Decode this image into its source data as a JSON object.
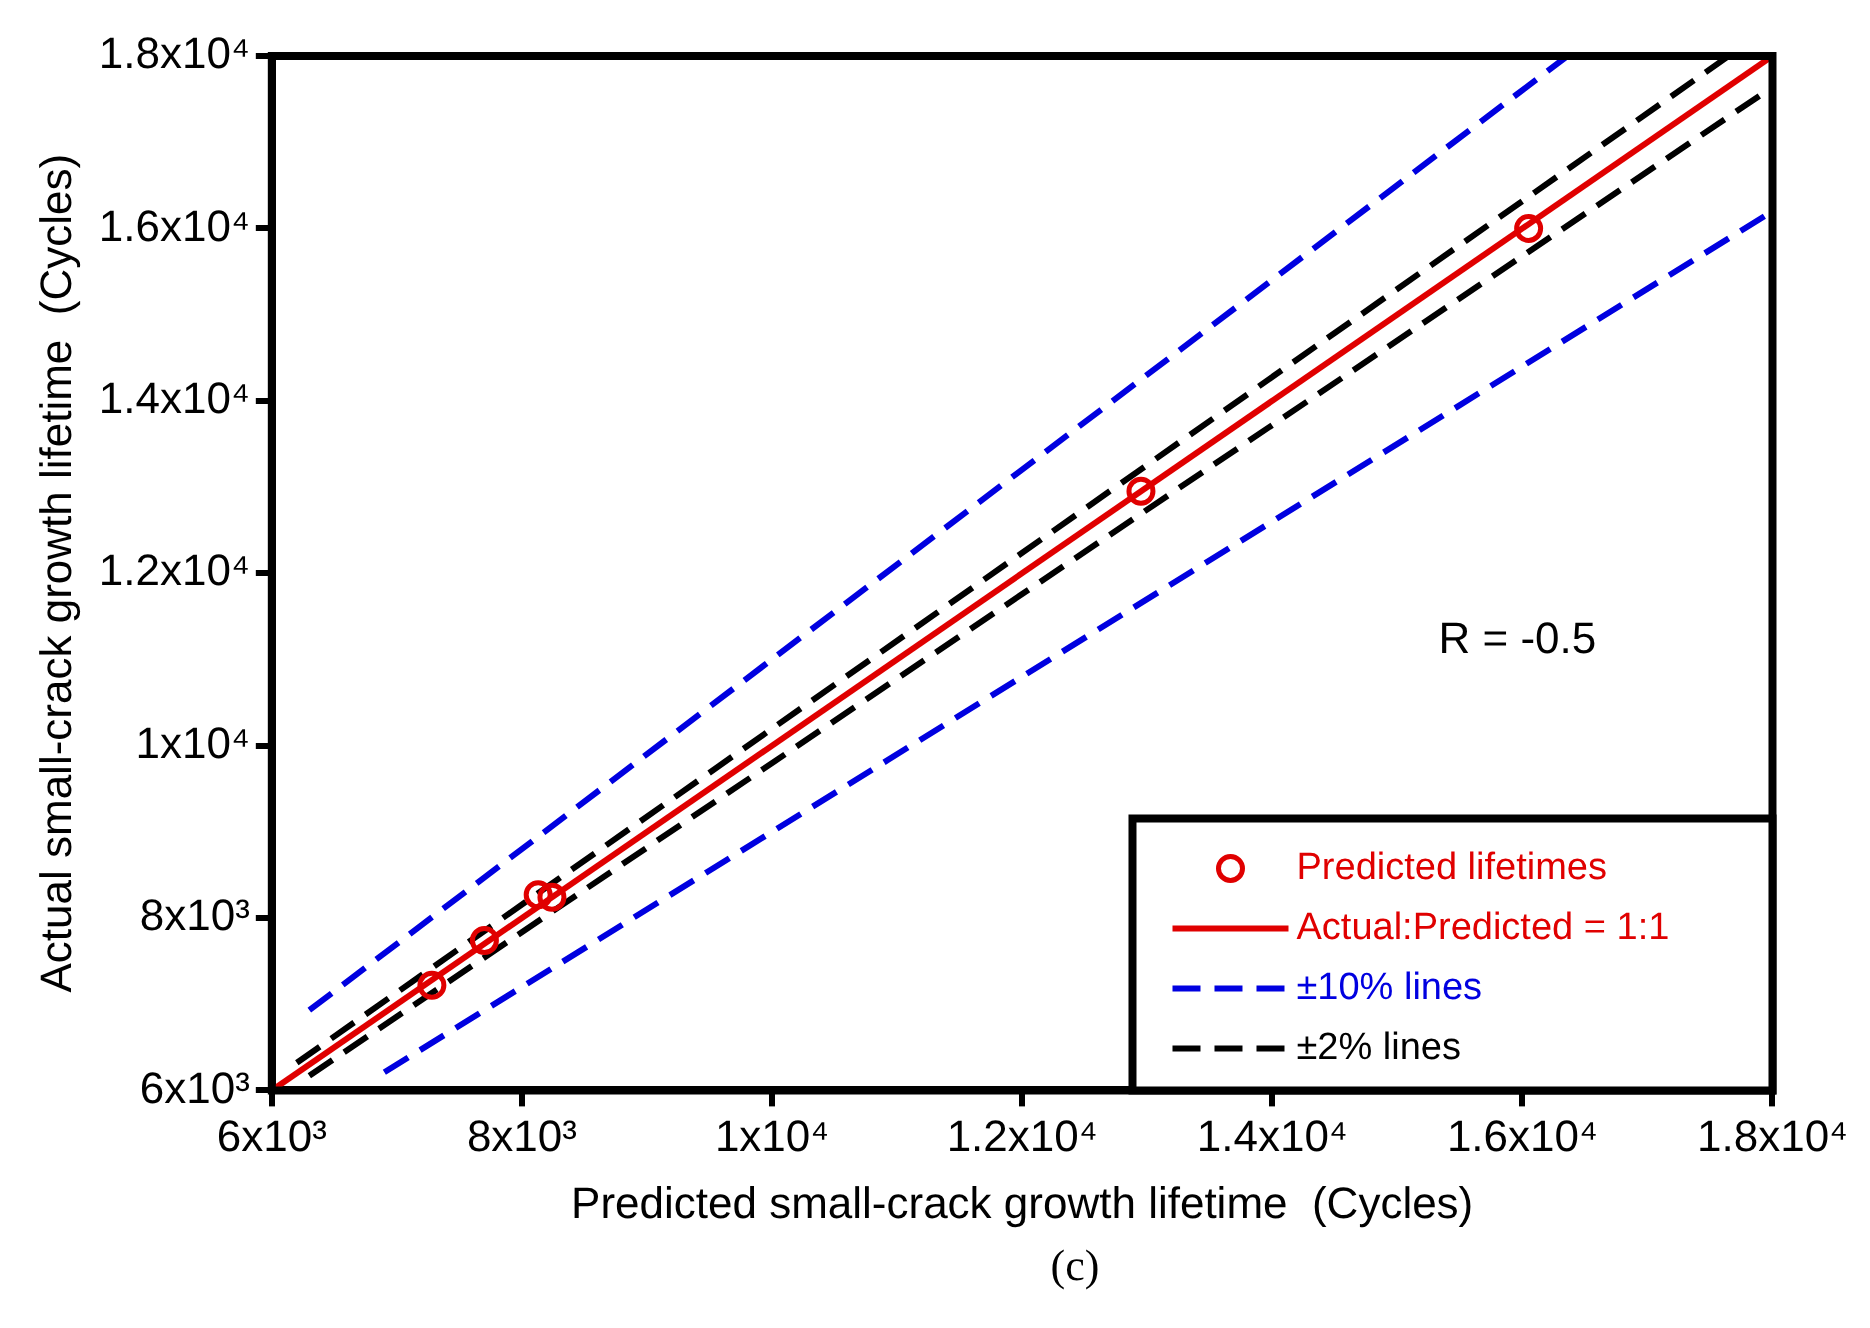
{
  "chart_data": {
    "type": "scatter",
    "xlabel": "Predicted small-crack growth lifetime  (Cycles)",
    "ylabel": "Actual small-crack growth lifetime  (Cycles)",
    "xlim": [
      6000,
      18000
    ],
    "ylim": [
      6000,
      18000
    ],
    "xticks": [
      {
        "value": 6000,
        "label": "6x10³"
      },
      {
        "value": 8000,
        "label": "8x10³"
      },
      {
        "value": 10000,
        "label": "1x10⁴"
      },
      {
        "value": 12000,
        "label": "1.2x10⁴"
      },
      {
        "value": 14000,
        "label": "1.4x10⁴"
      },
      {
        "value": 16000,
        "label": "1.6x10⁴"
      },
      {
        "value": 18000,
        "label": "1.8x10⁴"
      }
    ],
    "yticks": [
      {
        "value": 6000,
        "label": "6x10³"
      },
      {
        "value": 8000,
        "label": "8x10³"
      },
      {
        "value": 10000,
        "label": "1x10⁴"
      },
      {
        "value": 12000,
        "label": "1.2x10⁴"
      },
      {
        "value": 14000,
        "label": "1.4x10⁴"
      },
      {
        "value": 16000,
        "label": "1.6x10⁴"
      },
      {
        "value": 18000,
        "label": "1.8x10⁴"
      }
    ],
    "grid": false,
    "legend": "bottom right",
    "series": [
      {
        "name": "Predicted lifetimes",
        "type": "scatter",
        "color": "#e00000",
        "marker": "circle",
        "x": [
          7280,
          7700,
          8130,
          8240,
          12950,
          16050
        ],
        "values": [
          7220,
          7740,
          8270,
          8240,
          12950,
          16000
        ]
      },
      {
        "name": "Actual:Predicted = 1:1",
        "type": "line",
        "color": "#e00000",
        "marker": "none",
        "line_style": "solid",
        "x": [
          6000,
          18000
        ],
        "values": [
          6000,
          18000
        ]
      },
      {
        "name": "±10% lines",
        "type": "line",
        "color": "#0000e0",
        "marker": "none",
        "line_style": "dashed",
        "x": [
          6300,
          16360
        ],
        "values": [
          6930,
          18000
        ]
      },
      {
        "type": "line",
        "color": "#0000e0",
        "marker": "none",
        "line_style": "dashed",
        "x": [
          6900,
          18000
        ],
        "values": [
          6210,
          16200
        ]
      },
      {
        "name": "±2% lines",
        "type": "line",
        "color": "#000000",
        "marker": "none",
        "line_style": "dashed",
        "x": [
          6200,
          17640
        ],
        "values": [
          6320,
          17990
        ]
      },
      {
        "type": "line",
        "color": "#000000",
        "marker": "none",
        "line_style": "dashed",
        "x": [
          6300,
          18000
        ],
        "values": [
          6170,
          17640
        ]
      }
    ],
    "annotations": [
      "R = -0.5",
      "(c)"
    ]
  }
}
